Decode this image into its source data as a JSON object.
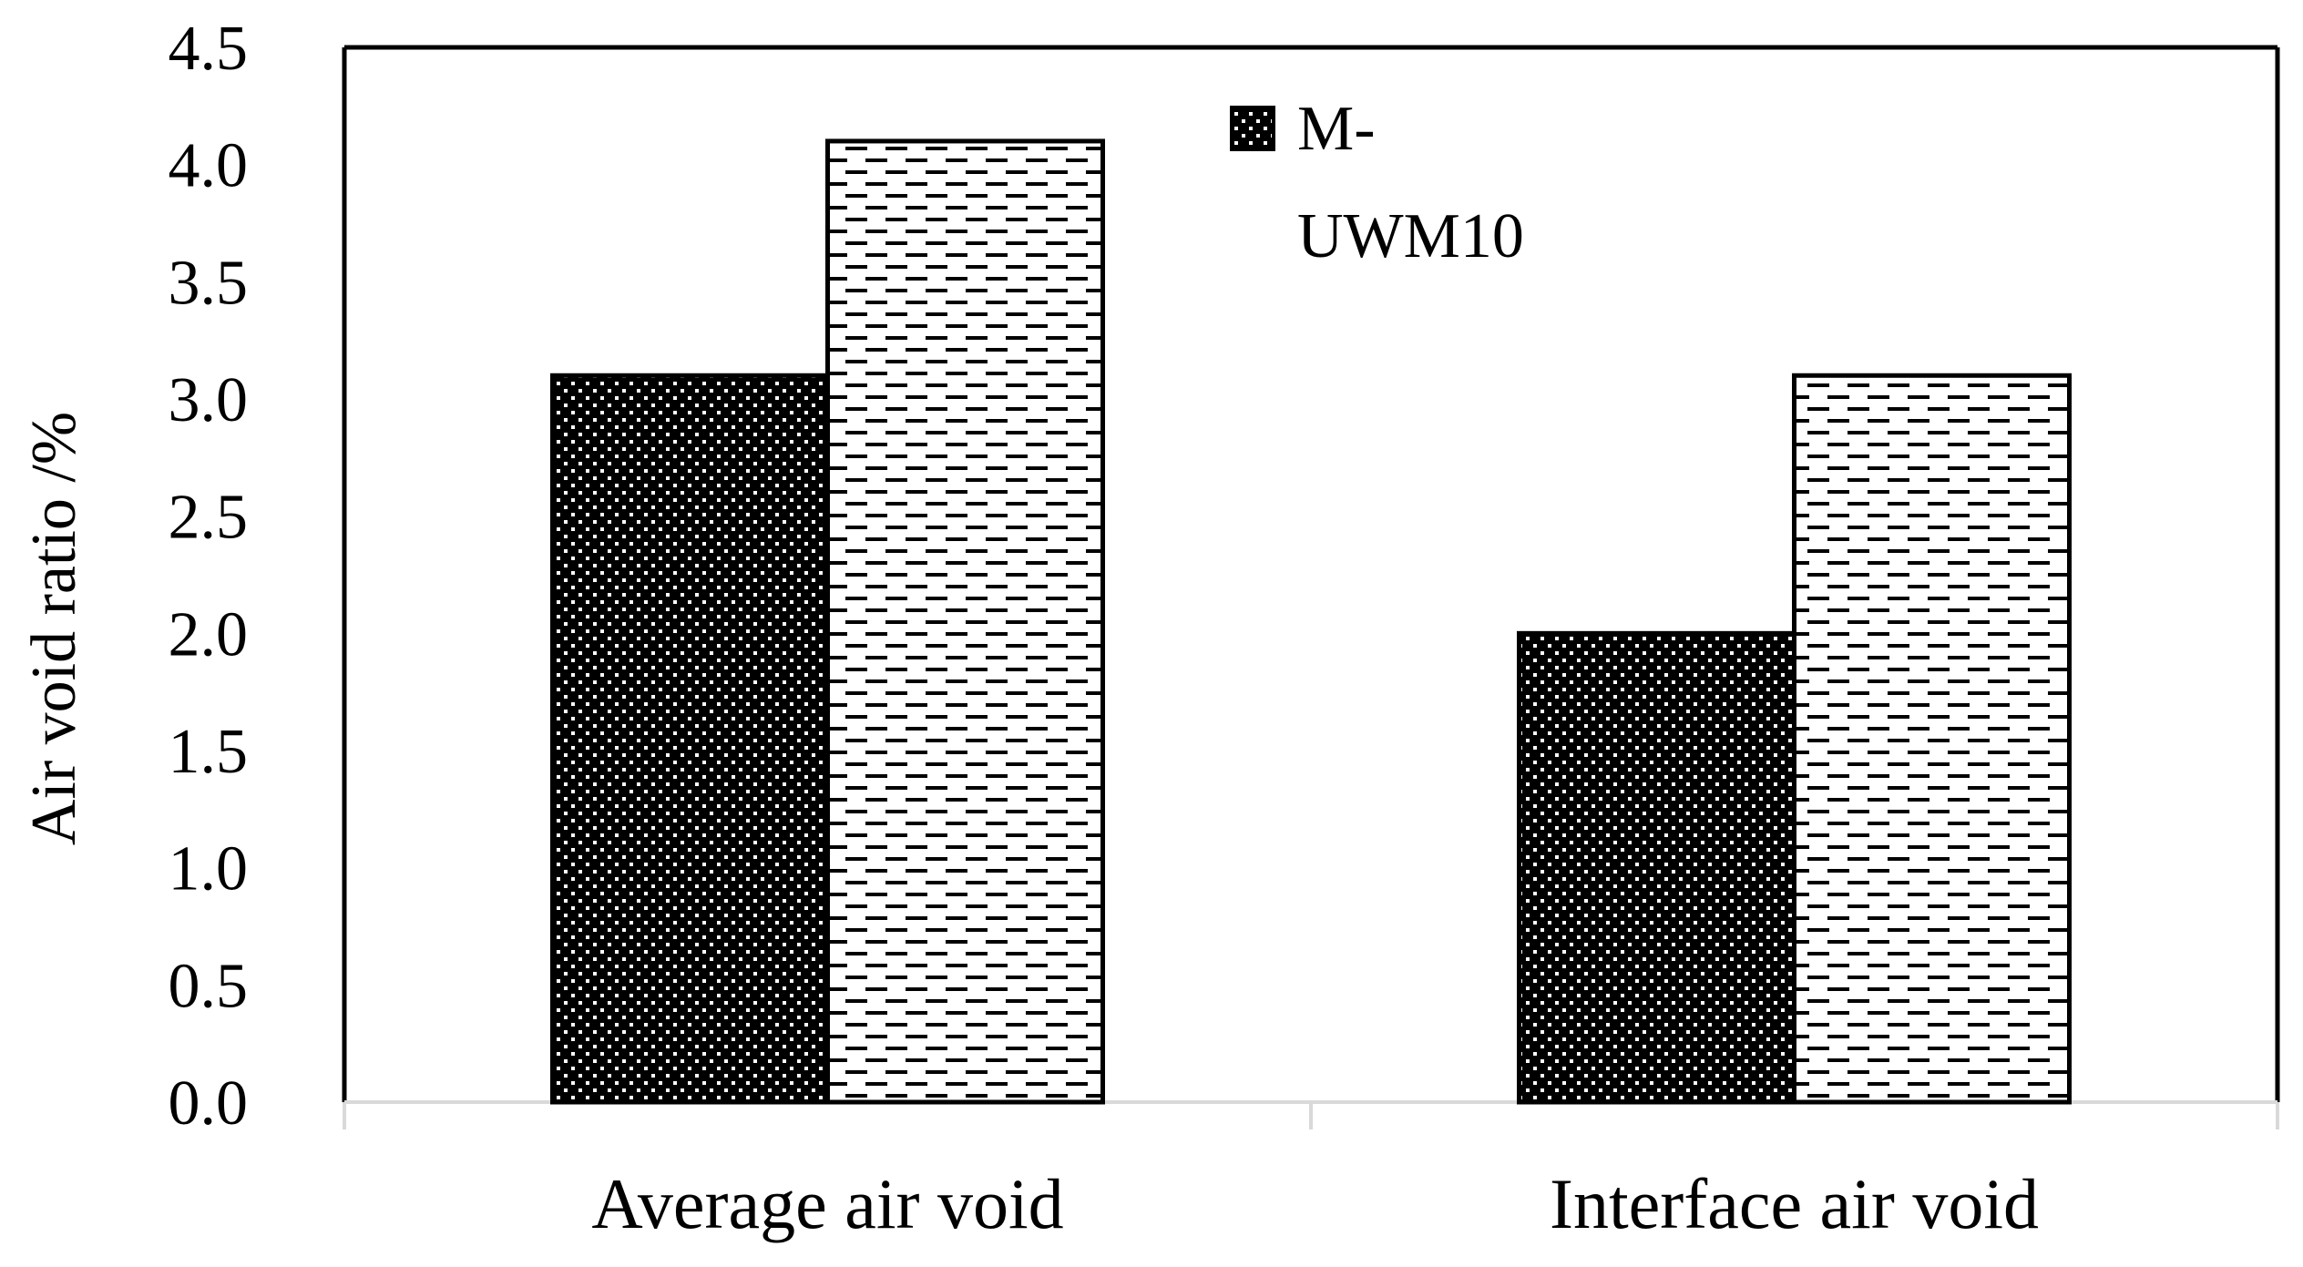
{
  "chart_data": {
    "type": "bar",
    "title": "",
    "xlabel": "",
    "ylabel": "Air void ratio /%",
    "categories": [
      "Average air void",
      "Interface air void"
    ],
    "series": [
      {
        "name": "M-UWM10",
        "values": [
          3.1,
          2.0
        ],
        "pattern": "dots"
      },
      {
        "values": [
          4.1,
          3.1
        ],
        "pattern": "dashes"
      }
    ],
    "ylim": [
      0,
      4.5
    ],
    "yticks": [
      "0.0",
      "0.5",
      "1.0",
      "1.5",
      "2.0",
      "2.5",
      "3.0",
      "3.5",
      "4.0",
      "4.5"
    ],
    "grid": false,
    "legend": {
      "placement": "top-center",
      "lines": [
        "M-",
        "UWM10"
      ]
    },
    "colors": {
      "bar_fill_dark": "#000000",
      "bar_fill_light": "#ffffff",
      "axis": "#000000",
      "category_axis": "#d9d9d9"
    }
  }
}
